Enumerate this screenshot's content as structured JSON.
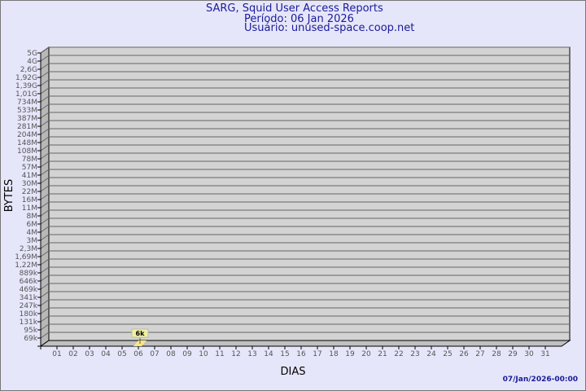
{
  "header": {
    "title": "SARG, Squid User Access Reports",
    "period": "Período: 06 Jan 2026",
    "user": "Usuário: unused-space.coop.net"
  },
  "footer": {
    "generated": "07/Jan/2026-00:00"
  },
  "colors": {
    "background": "#e6e6fa",
    "plot": "#d3d3d3",
    "bar": "#ffe680",
    "label_box": "#f0f0a0",
    "title": "#1a1a99"
  },
  "chart_data": {
    "type": "bar",
    "xlabel": "DIAS",
    "ylabel": "BYTES",
    "y_scale": "log",
    "y_ticks": [
      "69k",
      "95k",
      "131k",
      "180k",
      "247k",
      "341k",
      "469k",
      "646k",
      "889k",
      "1,22M",
      "1,69M",
      "2,3M",
      "3M",
      "4M",
      "6M",
      "8M",
      "11M",
      "16M",
      "22M",
      "30M",
      "41M",
      "57M",
      "78M",
      "108M",
      "148M",
      "204M",
      "281M",
      "387M",
      "533M",
      "734M",
      "1,01G",
      "1,39G",
      "1,92G",
      "2,6G",
      "4G",
      "5G"
    ],
    "categories": [
      "01",
      "02",
      "03",
      "04",
      "05",
      "06",
      "07",
      "08",
      "09",
      "10",
      "11",
      "12",
      "13",
      "14",
      "15",
      "16",
      "17",
      "18",
      "19",
      "20",
      "21",
      "22",
      "23",
      "24",
      "25",
      "26",
      "27",
      "28",
      "29",
      "30",
      "31"
    ],
    "values": [
      0,
      0,
      0,
      0,
      0,
      6000,
      0,
      0,
      0,
      0,
      0,
      0,
      0,
      0,
      0,
      0,
      0,
      0,
      0,
      0,
      0,
      0,
      0,
      0,
      0,
      0,
      0,
      0,
      0,
      0,
      0
    ],
    "data_labels": [
      {
        "category": "06",
        "text": "6k"
      }
    ],
    "grid": true
  }
}
